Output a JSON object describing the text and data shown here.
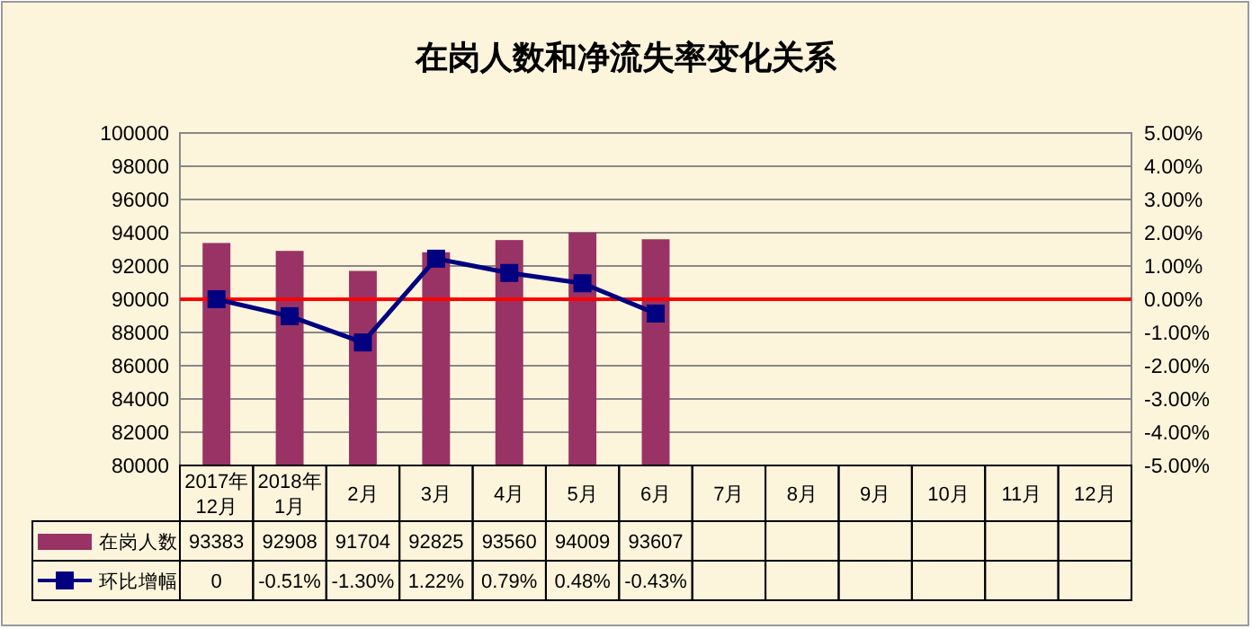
{
  "chart_data": {
    "type": "bar",
    "title": "在岗人数和净流失率变化关系",
    "categories": [
      "2017年\n12月",
      "2018年\n1月",
      "2月",
      "3月",
      "4月",
      "5月",
      "6月",
      "7月",
      "8月",
      "9月",
      "10月",
      "11月",
      "12月"
    ],
    "series": [
      {
        "name": "在岗人数",
        "color": "#993366",
        "values": [
          93383,
          92908,
          91704,
          92825,
          93560,
          94009,
          93607,
          null,
          null,
          null,
          null,
          null,
          null
        ],
        "value_labels": [
          "93383",
          "92908",
          "91704",
          "92825",
          "93560",
          "94009",
          "93607",
          null,
          null,
          null,
          null,
          null,
          null
        ]
      },
      {
        "name": "环比增幅",
        "type": "line",
        "axis": "y2",
        "color": "#000080",
        "marker": "square",
        "values": [
          0,
          -0.51,
          -1.3,
          1.22,
          0.79,
          0.48,
          -0.43,
          null,
          null,
          null,
          null,
          null,
          null
        ],
        "value_labels": [
          "0",
          "-0.51%",
          "-1.30%",
          "1.22%",
          "0.79%",
          "0.48%",
          "-0.43%",
          null,
          null,
          null,
          null,
          null,
          null
        ]
      }
    ],
    "ylim": [
      80000,
      100000
    ],
    "yticks": [
      80000,
      82000,
      84000,
      86000,
      88000,
      90000,
      92000,
      94000,
      96000,
      98000,
      100000
    ],
    "y2lim": [
      -5,
      5
    ],
    "y2ticks": [
      {
        "value": -5,
        "label": "-5.00%"
      },
      {
        "value": -4,
        "label": "-4.00%"
      },
      {
        "value": -3,
        "label": "-3.00%"
      },
      {
        "value": -2,
        "label": "-2.00%"
      },
      {
        "value": -1,
        "label": "-1.00%"
      },
      {
        "value": 0,
        "label": "0.00%"
      },
      {
        "value": 1,
        "label": "1.00%"
      },
      {
        "value": 2,
        "label": "2.00%"
      },
      {
        "value": 3,
        "label": "3.00%"
      },
      {
        "value": 4,
        "label": "4.00%"
      },
      {
        "value": 5,
        "label": "5.00%"
      }
    ],
    "ref_lines": [
      {
        "axis": "y2",
        "value": 0,
        "color": "#ff0000",
        "line_style": "solid"
      }
    ],
    "grid": "y",
    "legend": "bottom"
  }
}
